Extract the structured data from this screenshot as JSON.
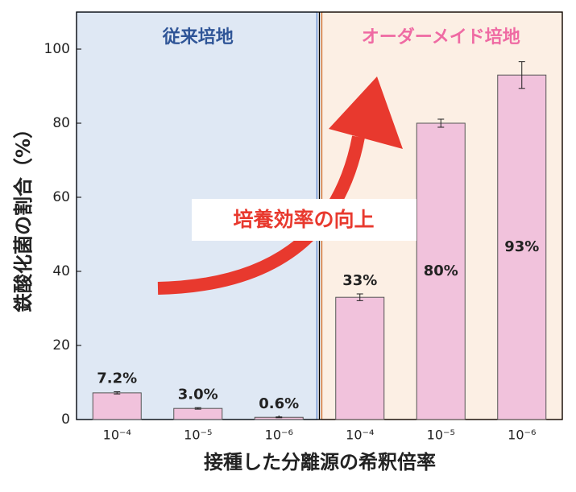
{
  "chart_data": {
    "type": "bar",
    "y_label": "鉄酸化菌の割合（%）",
    "x_label": "接種した分離源の希釈倍率",
    "categories": [
      "10⁻⁴",
      "10⁻⁵",
      "10⁻⁶",
      "10⁻⁴",
      "10⁻⁵",
      "10⁻⁶"
    ],
    "values": [
      7.2,
      3.0,
      0.6,
      33,
      80,
      93
    ],
    "value_labels": [
      "7.2%",
      "3.0%",
      "0.6%",
      "33%",
      "80%",
      "93%"
    ],
    "errors": [
      0.3,
      0.2,
      0.1,
      0.9,
      1.1,
      3.6
    ],
    "color": "#f1c2dc",
    "ylim": [
      0,
      110
    ],
    "yticks": [
      0,
      20,
      40,
      60,
      80,
      100
    ],
    "regions": [
      {
        "label": "従来培地",
        "color": "#dfe8f4",
        "text_color": "#2f5597"
      },
      {
        "label": "オーダーメイド培地",
        "color": "#fcefe4",
        "text_color": "#ef6aa3"
      }
    ],
    "annotation": "培養効率の向上"
  }
}
